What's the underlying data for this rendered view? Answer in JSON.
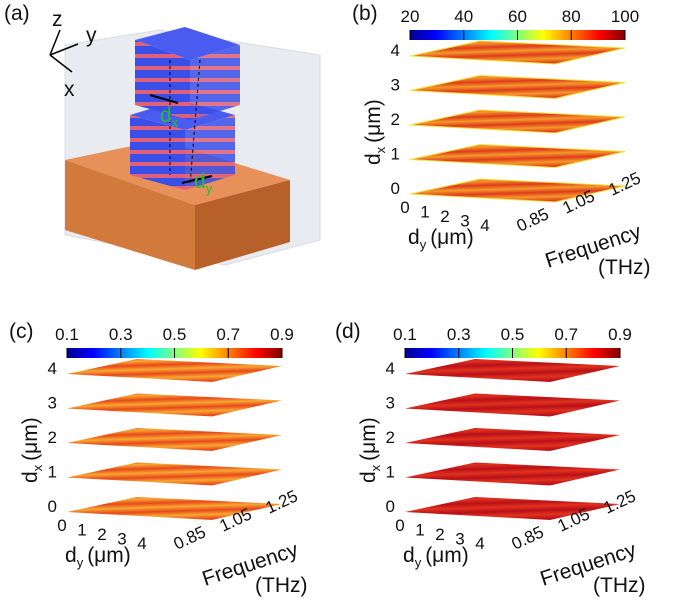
{
  "panels": [
    {
      "label": "(a)",
      "axes": {
        "z": "z",
        "y": "y",
        "x": "x"
      },
      "dx": {
        "base": "d",
        "sub": "x"
      },
      "dy": {
        "base": "d",
        "sub": "y"
      }
    },
    {
      "label": "(b)",
      "colorbar_ticks": [
        20,
        40,
        60,
        80,
        100
      ],
      "dx_ticks": [
        0,
        1,
        2,
        3,
        4
      ],
      "dx_label": {
        "base": "d",
        "sub": "x",
        "unit": "(μm)"
      },
      "dy_ticks": [
        0,
        1,
        2,
        3,
        4
      ],
      "dy_label": {
        "base": "d",
        "sub": "y",
        "unit": "(μm)"
      },
      "freq_ticks": [
        0.85,
        1.05,
        1.25
      ],
      "freq_label": "Frequency",
      "freq_unit": "(THz)"
    },
    {
      "label": "(c)",
      "colorbar_ticks": [
        0.1,
        0.3,
        0.5,
        0.7,
        0.9
      ],
      "dx_ticks": [
        0,
        1,
        2,
        3,
        4
      ],
      "dx_label": {
        "base": "d",
        "sub": "x",
        "unit": "(μm)"
      },
      "dy_ticks": [
        0,
        1,
        2,
        3,
        4
      ],
      "dy_label": {
        "base": "d",
        "sub": "y",
        "unit": "(μm)"
      },
      "freq_ticks": [
        0.85,
        1.05,
        1.25
      ],
      "freq_label": "Frequency",
      "freq_unit": "(THz)"
    },
    {
      "label": "(d)",
      "colorbar_ticks": [
        0.1,
        0.3,
        0.5,
        0.7,
        0.9
      ],
      "dx_ticks": [
        0,
        1,
        2,
        3,
        4
      ],
      "dx_label": {
        "base": "d",
        "sub": "x",
        "unit": "(μm)"
      },
      "dy_ticks": [
        0,
        1,
        2,
        3,
        4
      ],
      "dy_label": {
        "base": "d",
        "sub": "y",
        "unit": "(μm)"
      },
      "freq_ticks": [
        0.85,
        1.05,
        1.25
      ],
      "freq_label": "Frequency",
      "freq_unit": "(THz)"
    }
  ]
}
